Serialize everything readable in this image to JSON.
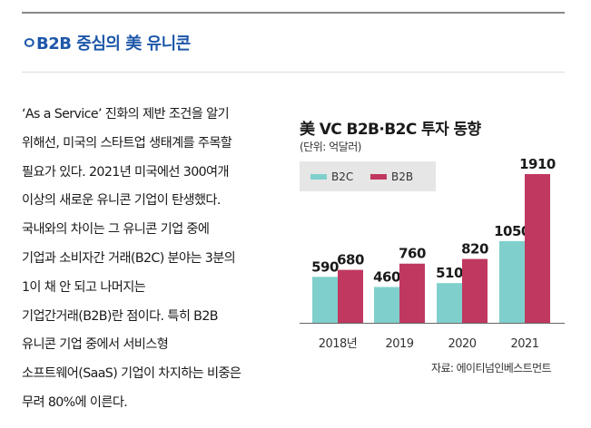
{
  "header": {
    "title": "ㅇB2B 중심의 美 유니콘"
  },
  "article": {
    "lines": [
      "‘As a Service’ 진화의 제반 조건을 알기",
      "위해선, 미국의 스타트업 생태계를 주목할",
      "필요가 있다. 2021년 미국에선 300여개",
      "이상의 새로운 유니콘 기업이 탄생했다.",
      "국내와의 차이는 그 유니콘 기업 중에",
      "기업과 소비자간 거래(B2C) 분야는 3분의",
      "1이 채 안 되고 나머지는",
      "기업간거래(B2B)란 점이다. 특히 B2B",
      "유니콘 기업 중에서 서비스형",
      "소프트웨어(SaaS) 기업이 차지하는 비중은",
      "무려 80%에 이른다."
    ]
  },
  "chart_data": {
    "type": "bar",
    "title": "美 VC B2B·B2C 투자 동향",
    "subtitle": "(단위: 억달러)",
    "categories": [
      "2018년",
      "2019",
      "2020",
      "2021"
    ],
    "series": [
      {
        "name": "B2C",
        "values": [
          590,
          460,
          510,
          1050
        ],
        "color": "#7fd0cc"
      },
      {
        "name": "B2B",
        "values": [
          680,
          760,
          820,
          1910
        ],
        "color": "#c0385f"
      }
    ],
    "ylim": [
      0,
      1910
    ],
    "legend": "top-left",
    "grid": false,
    "source": "자료: 에이티넘인베스트먼트"
  }
}
